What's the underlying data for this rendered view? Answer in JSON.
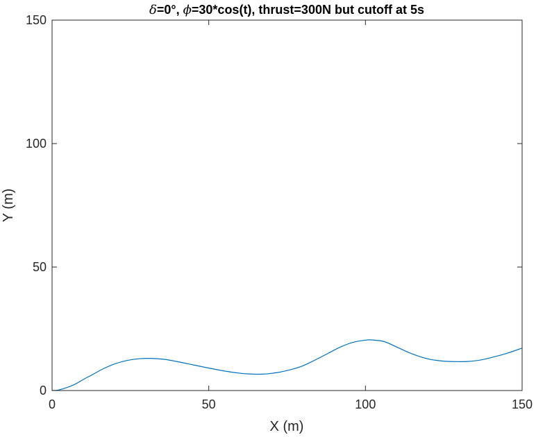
{
  "chart_data": {
    "type": "line",
    "title_parts": {
      "delta_symbol": "δ",
      "delta_text": "=0°, ",
      "phi_symbol": "ϕ",
      "rest_text": "=30*cos(t), thrust=300N but cutoff at 5s"
    },
    "xlabel": "X (m)",
    "ylabel": "Y (m)",
    "xlim": [
      0,
      150
    ],
    "ylim": [
      0,
      150
    ],
    "xticks": [
      0,
      50,
      100,
      150
    ],
    "yticks": [
      0,
      50,
      100,
      150
    ],
    "grid": false,
    "line_color": "#0072BD",
    "axis_color": "#262626",
    "series": [
      {
        "x": [
          0,
          2,
          4,
          6,
          8,
          10,
          13,
          16,
          20,
          24,
          28,
          32,
          36,
          40,
          45,
          50,
          55,
          60,
          63,
          66,
          69,
          72,
          76,
          80,
          84,
          88,
          92,
          96,
          100,
          102,
          106,
          110,
          115,
          120,
          125,
          130,
          133,
          136,
          140,
          145,
          150
        ],
        "y": [
          0,
          0.2,
          0.9,
          1.8,
          3.0,
          4.5,
          6.5,
          8.6,
          10.8,
          12.2,
          12.9,
          13.0,
          12.6,
          11.7,
          10.4,
          9.1,
          7.9,
          7.0,
          6.7,
          6.6,
          6.8,
          7.3,
          8.4,
          10.0,
          12.4,
          15.0,
          17.6,
          19.5,
          20.4,
          20.5,
          19.8,
          17.6,
          14.8,
          12.8,
          11.9,
          11.7,
          11.8,
          12.2,
          13.3,
          15.0,
          17.2
        ]
      }
    ]
  }
}
